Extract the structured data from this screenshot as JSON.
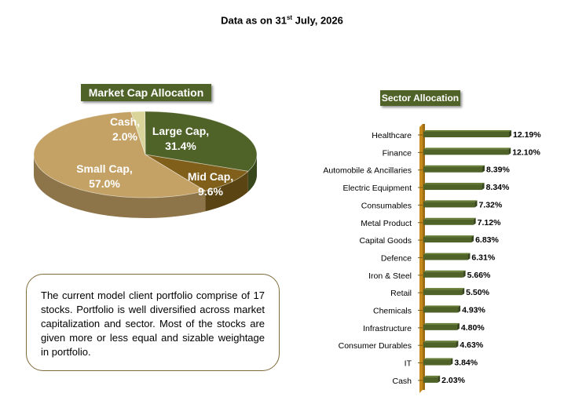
{
  "header": {
    "prefix": "Data as on 31",
    "sup": "st",
    "suffix": " July, 2026"
  },
  "note": "The current model client portfolio comprise of 17 stocks. Portfolio is well diversified across market capitalization and sector. Most of the stocks are given more or less equal and sizable weightage in portfolio.",
  "chart_data": [
    {
      "type": "pie",
      "title": "Market Cap Allocation",
      "slices": [
        {
          "label": "Large Cap,",
          "value": 31.4,
          "value_label": "31.4%",
          "color": "#4f6228"
        },
        {
          "label": "Mid Cap,",
          "value": 9.6,
          "value_label": "9.6%",
          "color": "#7f5f1a"
        },
        {
          "label": "Small Cap,",
          "value": 57.0,
          "value_label": "57.0%",
          "color": "#c4a266"
        },
        {
          "label": "Cash,",
          "value": 2.0,
          "value_label": "2.0%",
          "color": "#d8d49a"
        }
      ]
    },
    {
      "type": "bar",
      "orientation": "horizontal",
      "title": "Sector Allocation",
      "bar_color": "#4f6228",
      "axis_color": "#c68a1c",
      "categories": [
        "Healthcare",
        "Finance",
        "Automobile & Ancillaries",
        "Electric Equipment",
        "Consumables",
        "Metal Product",
        "Capital Goods",
        "Defence",
        "Iron & Steel",
        "Retail",
        "Chemicals",
        "Infrastructure",
        "Consumer Durables",
        "IT",
        "Cash"
      ],
      "values": [
        12.19,
        12.1,
        8.39,
        8.34,
        7.32,
        7.12,
        6.83,
        6.31,
        5.66,
        5.5,
        4.93,
        4.8,
        4.63,
        3.84,
        2.03
      ],
      "value_labels": [
        "12.19%",
        "12.10%",
        "8.39%",
        "8.34%",
        "7.32%",
        "7.12%",
        "6.83%",
        "6.31%",
        "5.66%",
        "5.50%",
        "4.93%",
        "4.80%",
        "4.63%",
        "3.84%",
        "2.03%"
      ]
    }
  ]
}
